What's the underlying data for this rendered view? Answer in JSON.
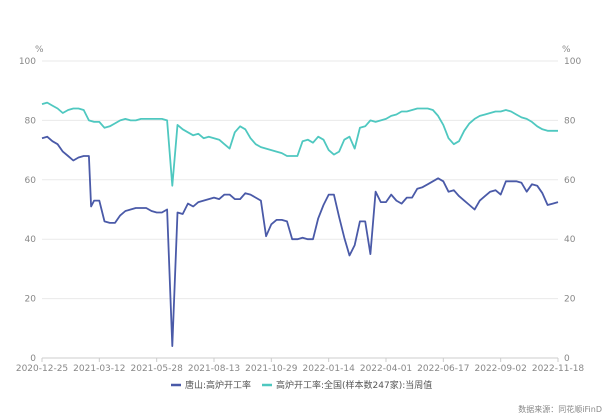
{
  "chart_data": {
    "type": "line",
    "y_unit_left": "%",
    "y_unit_right": "%",
    "ylim": [
      0,
      100
    ],
    "yticks": [
      0,
      20,
      40,
      60,
      80,
      100
    ],
    "xlim": [
      "2020-12-25",
      "2022-11-18"
    ],
    "xticks": [
      "2020-12-25",
      "2021-03-12",
      "2021-05-28",
      "2021-08-13",
      "2021-10-29",
      "2022-01-14",
      "2022-04-01",
      "2022-06-17",
      "2022-09-02",
      "2022-11-18"
    ],
    "grid": true,
    "legend_position": "bottom",
    "source": "数据来源：同花顺iFinD",
    "series": [
      {
        "name": "唐山:高炉开工率",
        "color": "#4a5aa8",
        "points": [
          [
            "2020-12-25",
            74
          ],
          [
            "2021-01-01",
            74.5
          ],
          [
            "2021-01-08",
            73
          ],
          [
            "2021-01-15",
            72
          ],
          [
            "2021-01-22",
            69.5
          ],
          [
            "2021-01-29",
            68
          ],
          [
            "2021-02-05",
            66.5
          ],
          [
            "2021-02-12",
            67.5
          ],
          [
            "2021-02-19",
            68
          ],
          [
            "2021-02-26",
            68
          ],
          [
            "2021-03-01",
            51
          ],
          [
            "2021-03-05",
            53
          ],
          [
            "2021-03-12",
            53
          ],
          [
            "2021-03-19",
            46
          ],
          [
            "2021-03-26",
            45.5
          ],
          [
            "2021-04-02",
            45.5
          ],
          [
            "2021-04-09",
            48
          ],
          [
            "2021-04-16",
            49.5
          ],
          [
            "2021-04-23",
            50
          ],
          [
            "2021-04-30",
            50.5
          ],
          [
            "2021-05-07",
            50.5
          ],
          [
            "2021-05-14",
            50.5
          ],
          [
            "2021-05-21",
            49.5
          ],
          [
            "2021-05-28",
            49
          ],
          [
            "2021-06-04",
            49
          ],
          [
            "2021-06-11",
            50
          ],
          [
            "2021-06-18",
            4
          ],
          [
            "2021-06-25",
            49
          ],
          [
            "2021-07-02",
            48.5
          ],
          [
            "2021-07-09",
            52
          ],
          [
            "2021-07-16",
            51
          ],
          [
            "2021-07-23",
            52.5
          ],
          [
            "2021-07-30",
            53
          ],
          [
            "2021-08-06",
            53.5
          ],
          [
            "2021-08-13",
            54
          ],
          [
            "2021-08-20",
            53.5
          ],
          [
            "2021-08-27",
            55
          ],
          [
            "2021-09-03",
            55
          ],
          [
            "2021-09-10",
            53.5
          ],
          [
            "2021-09-17",
            53.5
          ],
          [
            "2021-09-24",
            55.5
          ],
          [
            "2021-10-01",
            55
          ],
          [
            "2021-10-08",
            54
          ],
          [
            "2021-10-15",
            53
          ],
          [
            "2021-10-22",
            41
          ],
          [
            "2021-10-29",
            45
          ],
          [
            "2021-11-05",
            46.5
          ],
          [
            "2021-11-12",
            46.5
          ],
          [
            "2021-11-19",
            46
          ],
          [
            "2021-11-26",
            40
          ],
          [
            "2021-12-03",
            40
          ],
          [
            "2021-12-10",
            40.5
          ],
          [
            "2021-12-17",
            40
          ],
          [
            "2021-12-24",
            40
          ],
          [
            "2021-12-31",
            47
          ],
          [
            "2022-01-07",
            51.5
          ],
          [
            "2022-01-14",
            55
          ],
          [
            "2022-01-21",
            55
          ],
          [
            "2022-01-28",
            47.5
          ],
          [
            "2022-02-04",
            40.5
          ],
          [
            "2022-02-11",
            34.5
          ],
          [
            "2022-02-18",
            38
          ],
          [
            "2022-02-25",
            46
          ],
          [
            "2022-03-04",
            46
          ],
          [
            "2022-03-11",
            35
          ],
          [
            "2022-03-18",
            56
          ],
          [
            "2022-03-25",
            52.5
          ],
          [
            "2022-04-01",
            52.5
          ],
          [
            "2022-04-08",
            55
          ],
          [
            "2022-04-15",
            53
          ],
          [
            "2022-04-22",
            52
          ],
          [
            "2022-04-29",
            54
          ],
          [
            "2022-05-06",
            54
          ],
          [
            "2022-05-13",
            57
          ],
          [
            "2022-05-20",
            57.5
          ],
          [
            "2022-05-27",
            58.5
          ],
          [
            "2022-06-03",
            59.5
          ],
          [
            "2022-06-10",
            60.5
          ],
          [
            "2022-06-17",
            59.5
          ],
          [
            "2022-06-24",
            56
          ],
          [
            "2022-07-01",
            56.5
          ],
          [
            "2022-07-08",
            54.5
          ],
          [
            "2022-07-15",
            53
          ],
          [
            "2022-07-22",
            51.5
          ],
          [
            "2022-07-29",
            50
          ],
          [
            "2022-08-05",
            53
          ],
          [
            "2022-08-12",
            54.5
          ],
          [
            "2022-08-19",
            56
          ],
          [
            "2022-08-26",
            56.5
          ],
          [
            "2022-09-02",
            55
          ],
          [
            "2022-09-09",
            59.5
          ],
          [
            "2022-09-16",
            59.5
          ],
          [
            "2022-09-23",
            59.5
          ],
          [
            "2022-09-30",
            59
          ],
          [
            "2022-10-07",
            56
          ],
          [
            "2022-10-14",
            58.5
          ],
          [
            "2022-10-21",
            58
          ],
          [
            "2022-10-28",
            55.5
          ],
          [
            "2022-11-04",
            51.5
          ],
          [
            "2022-11-11",
            52
          ],
          [
            "2022-11-18",
            52.5
          ]
        ]
      },
      {
        "name": "高炉开工率:全国(样本数247家):当周值",
        "color": "#4fc8c0",
        "points": [
          [
            "2020-12-25",
            85.5
          ],
          [
            "2021-01-01",
            86
          ],
          [
            "2021-01-08",
            85
          ],
          [
            "2021-01-15",
            84
          ],
          [
            "2021-01-22",
            82.5
          ],
          [
            "2021-01-29",
            83.5
          ],
          [
            "2021-02-05",
            84
          ],
          [
            "2021-02-12",
            84
          ],
          [
            "2021-02-19",
            83.5
          ],
          [
            "2021-02-26",
            80
          ],
          [
            "2021-03-05",
            79.5
          ],
          [
            "2021-03-12",
            79.5
          ],
          [
            "2021-03-19",
            77.5
          ],
          [
            "2021-03-26",
            78
          ],
          [
            "2021-04-02",
            79
          ],
          [
            "2021-04-09",
            80
          ],
          [
            "2021-04-16",
            80.5
          ],
          [
            "2021-04-23",
            80
          ],
          [
            "2021-04-30",
            80
          ],
          [
            "2021-05-07",
            80.5
          ],
          [
            "2021-05-14",
            80.5
          ],
          [
            "2021-05-21",
            80.5
          ],
          [
            "2021-05-28",
            80.5
          ],
          [
            "2021-06-04",
            80.5
          ],
          [
            "2021-06-11",
            80
          ],
          [
            "2021-06-18",
            58
          ],
          [
            "2021-06-25",
            78.5
          ],
          [
            "2021-07-02",
            77
          ],
          [
            "2021-07-09",
            76
          ],
          [
            "2021-07-16",
            75
          ],
          [
            "2021-07-23",
            75.5
          ],
          [
            "2021-07-30",
            74
          ],
          [
            "2021-08-06",
            74.5
          ],
          [
            "2021-08-13",
            74
          ],
          [
            "2021-08-20",
            73.5
          ],
          [
            "2021-08-27",
            72
          ],
          [
            "2021-09-03",
            70.5
          ],
          [
            "2021-09-10",
            76
          ],
          [
            "2021-09-17",
            78
          ],
          [
            "2021-09-24",
            77
          ],
          [
            "2021-10-01",
            74
          ],
          [
            "2021-10-08",
            72
          ],
          [
            "2021-10-15",
            71
          ],
          [
            "2021-10-22",
            70.5
          ],
          [
            "2021-10-29",
            70
          ],
          [
            "2021-11-05",
            69.5
          ],
          [
            "2021-11-12",
            69
          ],
          [
            "2021-11-19",
            68
          ],
          [
            "2021-11-26",
            68
          ],
          [
            "2021-12-03",
            68
          ],
          [
            "2021-12-10",
            73
          ],
          [
            "2021-12-17",
            73.5
          ],
          [
            "2021-12-24",
            72.5
          ],
          [
            "2021-12-31",
            74.5
          ],
          [
            "2022-01-07",
            73.5
          ],
          [
            "2022-01-14",
            70
          ],
          [
            "2022-01-21",
            68.5
          ],
          [
            "2022-01-28",
            69.5
          ],
          [
            "2022-02-04",
            73.5
          ],
          [
            "2022-02-11",
            74.5
          ],
          [
            "2022-02-18",
            70.5
          ],
          [
            "2022-02-25",
            77.5
          ],
          [
            "2022-03-04",
            78
          ],
          [
            "2022-03-11",
            80
          ],
          [
            "2022-03-18",
            79.5
          ],
          [
            "2022-03-25",
            80
          ],
          [
            "2022-04-01",
            80.5
          ],
          [
            "2022-04-08",
            81.5
          ],
          [
            "2022-04-15",
            82
          ],
          [
            "2022-04-22",
            83
          ],
          [
            "2022-04-29",
            83
          ],
          [
            "2022-05-06",
            83.5
          ],
          [
            "2022-05-13",
            84
          ],
          [
            "2022-05-20",
            84
          ],
          [
            "2022-05-27",
            84
          ],
          [
            "2022-06-03",
            83.5
          ],
          [
            "2022-06-10",
            81.5
          ],
          [
            "2022-06-17",
            78.5
          ],
          [
            "2022-06-24",
            74
          ],
          [
            "2022-07-01",
            72
          ],
          [
            "2022-07-08",
            73
          ],
          [
            "2022-07-15",
            76.5
          ],
          [
            "2022-07-22",
            79
          ],
          [
            "2022-07-29",
            80.5
          ],
          [
            "2022-08-05",
            81.5
          ],
          [
            "2022-08-12",
            82
          ],
          [
            "2022-08-19",
            82.5
          ],
          [
            "2022-08-26",
            83
          ],
          [
            "2022-09-02",
            83
          ],
          [
            "2022-09-09",
            83.5
          ],
          [
            "2022-09-16",
            83
          ],
          [
            "2022-09-23",
            82
          ],
          [
            "2022-09-30",
            81
          ],
          [
            "2022-10-07",
            80.5
          ],
          [
            "2022-10-14",
            79.5
          ],
          [
            "2022-10-21",
            78
          ],
          [
            "2022-10-28",
            77
          ],
          [
            "2022-11-04",
            76.5
          ],
          [
            "2022-11-11",
            76.5
          ],
          [
            "2022-11-18",
            76.5
          ]
        ]
      }
    ]
  }
}
